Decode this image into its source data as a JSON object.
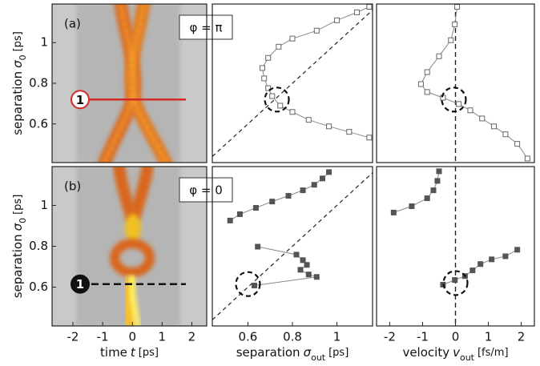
{
  "chart_data": [
    {
      "type": "image",
      "panel_label": "(a)",
      "annotation": "φ = π",
      "ylabel": {
        "text": "separation",
        "symbol": "σ",
        "sub": "0",
        "unit": "[ps]"
      },
      "xlim": [
        -2.7,
        2.5
      ],
      "ylim": [
        0.41,
        1.19
      ],
      "yticks": [
        0.6,
        0.8,
        1.0
      ],
      "reference_line": 0.72,
      "reference_label": "1",
      "reference_color": "#d42a2a"
    },
    {
      "type": "line",
      "marker": "open",
      "color": "#666666",
      "diagonal": true,
      "circle_at": [
        0.73,
        0.72
      ],
      "xlim": [
        0.44,
        1.16
      ],
      "ylim": [
        0.41,
        1.19
      ],
      "x": [
        1.145,
        1.09,
        1.0,
        0.909,
        0.8,
        0.738,
        0.691,
        0.665,
        0.673,
        0.691,
        0.709,
        0.745,
        0.8,
        0.873,
        0.964,
        1.055,
        1.145
      ],
      "y": [
        1.176,
        1.149,
        1.11,
        1.059,
        1.02,
        0.98,
        0.925,
        0.875,
        0.824,
        0.776,
        0.737,
        0.69,
        0.659,
        0.62,
        0.588,
        0.561,
        0.533
      ]
    },
    {
      "type": "line",
      "marker": "open",
      "color": "#666666",
      "reference_x": 0,
      "circle_at": [
        -0.05,
        0.72
      ],
      "xlim": [
        -2.4,
        2.4
      ],
      "ylim": [
        0.41,
        1.19
      ],
      "x": [
        0.05,
        -0.02,
        -0.14,
        -0.5,
        -0.86,
        -1.05,
        -0.86,
        -0.38,
        0.1,
        0.45,
        0.81,
        1.17,
        1.52,
        1.88,
        2.19
      ],
      "y": [
        1.176,
        1.09,
        1.012,
        0.933,
        0.855,
        0.796,
        0.757,
        0.729,
        0.698,
        0.667,
        0.627,
        0.588,
        0.549,
        0.502,
        0.43
      ]
    },
    {
      "type": "image",
      "panel_label": "(b)",
      "annotation": "φ = 0",
      "ylabel": {
        "text": "separation",
        "symbol": "σ",
        "sub": "0",
        "unit": "[ps]"
      },
      "xlabel": {
        "text": "time",
        "symbol": "t",
        "sub": "",
        "unit": "[ps]"
      },
      "xlim": [
        -2.7,
        2.5
      ],
      "ylim": [
        0.41,
        1.19
      ],
      "xticks": [
        -2,
        -1,
        0,
        1,
        2
      ],
      "yticks": [
        0.6,
        0.8,
        1.0
      ],
      "reference_line": 0.615,
      "reference_label": "1",
      "reference_color": "#111111"
    },
    {
      "type": "line",
      "marker": "filled",
      "color": "#555555",
      "diagonal": true,
      "circle_at": [
        0.6,
        0.615
      ],
      "xlabel": {
        "text": "separation",
        "symbol": "σ",
        "sub": "out",
        "unit": "[ps]"
      },
      "xlim": [
        0.44,
        1.16
      ],
      "ylim": [
        0.41,
        1.19
      ],
      "xticks": [
        0.6,
        0.8,
        1.0
      ],
      "x": [
        0.52,
        0.564,
        0.636,
        0.709,
        0.782,
        0.847,
        0.898,
        0.935,
        0.964,
        null,
        0.644,
        0.818,
        0.847,
        0.865,
        0.836,
        0.873,
        0.909,
        0.629
      ],
      "y": [
        0.926,
        0.957,
        0.988,
        1.019,
        1.047,
        1.074,
        1.101,
        1.132,
        1.163,
        null,
        0.798,
        0.759,
        0.732,
        0.709,
        0.685,
        0.662,
        0.65,
        0.608
      ]
    },
    {
      "type": "line",
      "marker": "filled",
      "color": "#555555",
      "reference_x": 0,
      "circle_at": [
        0.0,
        0.62
      ],
      "xlabel": {
        "text": "velocity",
        "symbol": "v",
        "sub": "out",
        "unit": "[fs/m]"
      },
      "xlim": [
        -2.4,
        2.4
      ],
      "ylim": [
        0.41,
        1.19
      ],
      "xticks": [
        -2,
        -1,
        0,
        1,
        2
      ],
      "x": [
        -0.5,
        -0.55,
        -0.67,
        -0.86,
        -1.33,
        -1.88,
        null,
        1.88,
        1.52,
        1.1,
        0.76,
        0.52,
        0.29,
        -0.02,
        -0.38
      ],
      "y": [
        1.167,
        1.12,
        1.074,
        1.035,
        0.996,
        0.965,
        null,
        0.783,
        0.751,
        0.736,
        0.713,
        0.682,
        0.654,
        0.635,
        0.612
      ]
    }
  ]
}
